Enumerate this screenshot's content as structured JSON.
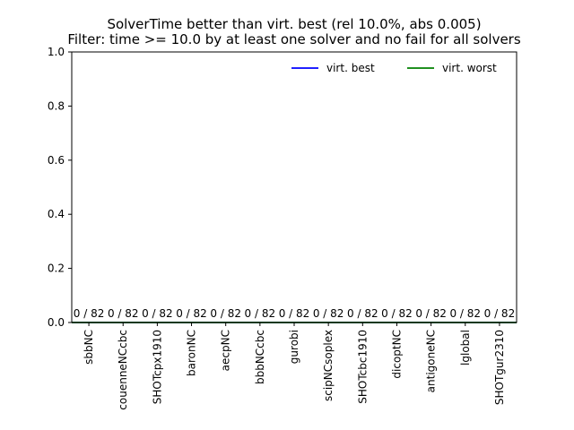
{
  "chart_data": {
    "type": "bar",
    "title": [
      "SolverTime better than virt. best (rel 10.0%, abs 0.005)",
      "Filter: time >= 10.0 by at least one solver and no fail for all solvers"
    ],
    "xlabel": "",
    "ylabel": "",
    "ylim": [
      0,
      1.0
    ],
    "yticks": [
      "0.0",
      "0.2",
      "0.4",
      "0.6",
      "0.8",
      "1.0"
    ],
    "categories": [
      "sbbNC",
      "couenneNCcbc",
      "SHOTcpx1910",
      "baronNC",
      "aecpNC",
      "bbbNCcbc",
      "gurobi",
      "scipNCsoplex",
      "SHOTcbc1910",
      "dicoptNC",
      "antigoneNC",
      "lglobal",
      "SHOTgur2310"
    ],
    "values": [
      0,
      0,
      0,
      0,
      0,
      0,
      0,
      0,
      0,
      0,
      0,
      0,
      0
    ],
    "bar_labels": [
      "0 / 82",
      "0 / 82",
      "0 / 82",
      "0 / 82",
      "0 / 82",
      "0 / 82",
      "0 / 82",
      "0 / 82",
      "0 / 82",
      "0 / 82",
      "0 / 82",
      "0 / 82",
      "0 / 82"
    ],
    "series": [
      {
        "name": "virt. best",
        "color": "#0000ff",
        "values": [
          0,
          0,
          0,
          0,
          0,
          0,
          0,
          0,
          0,
          0,
          0,
          0,
          0
        ]
      },
      {
        "name": "virt. worst",
        "color": "#008000",
        "values": [
          0,
          0,
          0,
          0,
          0,
          0,
          0,
          0,
          0,
          0,
          0,
          0,
          0
        ]
      }
    ],
    "legend_position": "top-right",
    "grid": false
  }
}
